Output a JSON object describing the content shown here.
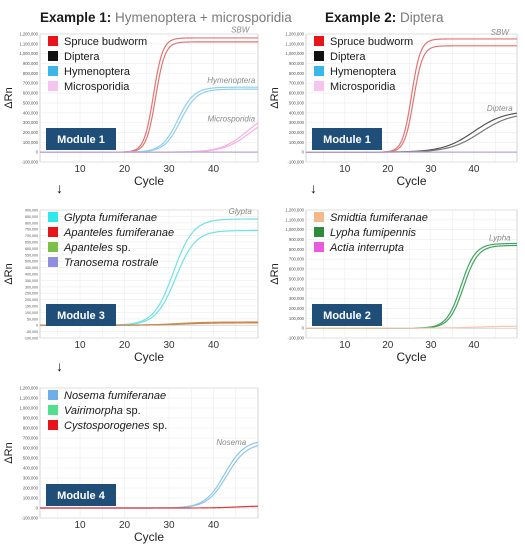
{
  "examples": [
    {
      "bold": "Example 1:",
      "rest": " Hymenoptera + microsporidia"
    },
    {
      "bold": "Example 2:",
      "rest": " Diptera"
    }
  ],
  "arrow_glyph": "↓",
  "chart_data": [
    {
      "id": "p1",
      "type": "line",
      "module_label": "Module 1",
      "xlabel": "Cycle",
      "ylabel": "ΔRn",
      "xlim": [
        1,
        50
      ],
      "ylim": [
        -100000,
        1200000
      ],
      "xticks": [
        10,
        20,
        30,
        40
      ],
      "yticks": [
        -100000,
        0,
        100000,
        200000,
        300000,
        400000,
        500000,
        600000,
        700000,
        800000,
        900000,
        1000000,
        1100000,
        1200000
      ],
      "ytick_labels": [
        "-100,000",
        "0",
        "100,000",
        "200,000",
        "300,000",
        "400,000",
        "500,000",
        "600,000",
        "700,000",
        "800,000",
        "900,000",
        "1,000,000",
        "1,100,000",
        "1,200,000"
      ],
      "legend": [
        {
          "name": "Spruce budworm",
          "color": "#e8141c",
          "italic": false
        },
        {
          "name": "Diptera",
          "color": "#111111",
          "italic": false
        },
        {
          "name": "Hymenoptera",
          "color": "#3bb6e8",
          "italic": false
        },
        {
          "name": "Microsporidia",
          "color": "#f6c4ee",
          "italic": false
        }
      ],
      "annotations": [
        {
          "text": "SBW",
          "x": 46,
          "y": 1215000
        },
        {
          "text": "Hymenoptera",
          "x": 44,
          "y": 700000
        },
        {
          "text": "Microsporidia",
          "x": 44,
          "y": 310000
        }
      ],
      "series": [
        {
          "color": "#e37473",
          "plateau": 1160000,
          "midpoint": 26.5,
          "slope": 0.95
        },
        {
          "color": "#e37473",
          "plateau": 1120000,
          "midpoint": 27.0,
          "slope": 0.95
        },
        {
          "color": "#8fd0ee",
          "plateau": 660000,
          "midpoint": 32.0,
          "slope": 0.55
        },
        {
          "color": "#8fd0ee",
          "plateau": 640000,
          "midpoint": 32.6,
          "slope": 0.55
        },
        {
          "color": "#f5b0e4",
          "plateau": 420000,
          "midpoint": 47.5,
          "slope": 0.35
        },
        {
          "color": "#f5b0e4",
          "plateau": 380000,
          "midpoint": 48.0,
          "slope": 0.35
        },
        {
          "color": "#b9a6d6",
          "plateau": 0,
          "midpoint": 30,
          "slope": 0.5
        }
      ]
    },
    {
      "id": "p2",
      "type": "line",
      "module_label": "Module 1",
      "xlabel": "Cycle",
      "ylabel": "ΔRn",
      "xlim": [
        1,
        50
      ],
      "ylim": [
        -100000,
        1200000
      ],
      "xticks": [
        10,
        20,
        30,
        40
      ],
      "yticks": [
        -100000,
        0,
        100000,
        200000,
        300000,
        400000,
        500000,
        600000,
        700000,
        800000,
        900000,
        1000000,
        1100000,
        1200000
      ],
      "ytick_labels": [
        "-100,000",
        "0",
        "100,000",
        "200,000",
        "300,000",
        "400,000",
        "500,000",
        "600,000",
        "700,000",
        "800,000",
        "900,000",
        "1,000,000",
        "1,100,000",
        "1,200,000"
      ],
      "legend": [
        {
          "name": "Spruce budworm",
          "color": "#e8141c",
          "italic": false
        },
        {
          "name": "Diptera",
          "color": "#111111",
          "italic": false
        },
        {
          "name": "Hymenoptera",
          "color": "#3bb6e8",
          "italic": false
        },
        {
          "name": "Microsporidia",
          "color": "#f6c4ee",
          "italic": false
        }
      ],
      "annotations": [
        {
          "text": "SBW",
          "x": 46,
          "y": 1190000
        },
        {
          "text": "Diptera",
          "x": 46,
          "y": 420000
        }
      ],
      "series": [
        {
          "color": "#e37473",
          "plateau": 1150000,
          "midpoint": 25.5,
          "slope": 0.95
        },
        {
          "color": "#e37473",
          "plateau": 1080000,
          "midpoint": 26.0,
          "slope": 0.95
        },
        {
          "color": "#555555",
          "plateau": 420000,
          "midpoint": 40.0,
          "slope": 0.28
        },
        {
          "color": "#777777",
          "plateau": 400000,
          "midpoint": 41.5,
          "slope": 0.28
        },
        {
          "color": "#b9a6d6",
          "plateau": 0,
          "midpoint": 30,
          "slope": 0.5
        }
      ]
    },
    {
      "id": "p3",
      "type": "line",
      "module_label": "Module 3",
      "xlabel": "Cycle",
      "ylabel": "ΔRn",
      "xlim": [
        1,
        50
      ],
      "ylim": [
        -100000,
        900000
      ],
      "xticks": [
        10,
        20,
        30,
        40
      ],
      "yticks": [
        -100000,
        -50000,
        0,
        50000,
        100000,
        150000,
        200000,
        250000,
        300000,
        350000,
        400000,
        450000,
        500000,
        550000,
        600000,
        650000,
        700000,
        750000,
        800000,
        850000,
        900000
      ],
      "ytick_labels": [
        "-100,000",
        "-50,000",
        "0",
        "50,000",
        "100,000",
        "150,000",
        "200,000",
        "250,000",
        "300,000",
        "350,000",
        "400,000",
        "450,000",
        "500,000",
        "550,000",
        "600,000",
        "650,000",
        "700,000",
        "750,000",
        "800,000",
        "850,000",
        "900,000"
      ],
      "legend": [
        {
          "name": "Glypta fumiferanae",
          "color": "#2ee8ec",
          "italic": true
        },
        {
          "name": "Apanteles fumiferanae",
          "color": "#e8141c",
          "italic": true
        },
        {
          "name": "Apanteles",
          "suffix": " sp.",
          "color": "#7cc04a",
          "italic": true
        },
        {
          "name": "Tranosema rostrale",
          "color": "#8f8fe0",
          "italic": true
        }
      ],
      "annotations": [
        {
          "text": "Glypta",
          "x": 46,
          "y": 870000
        }
      ],
      "series": [
        {
          "color": "#6ee3e6",
          "plateau": 830000,
          "midpoint": 31.0,
          "slope": 0.45
        },
        {
          "color": "#6ee3e6",
          "plateau": 740000,
          "midpoint": 31.5,
          "slope": 0.45
        },
        {
          "color": "#d4894a",
          "plateau": 25000,
          "midpoint": 32.0,
          "slope": 0.3
        },
        {
          "color": "#c6884e",
          "plateau": 18000,
          "midpoint": 33.0,
          "slope": 0.3
        }
      ]
    },
    {
      "id": "p4",
      "type": "line",
      "module_label": "Module 2",
      "xlabel": "Cycle",
      "ylabel": "ΔRn",
      "xlim": [
        1,
        50
      ],
      "ylim": [
        -100000,
        1200000
      ],
      "xticks": [
        10,
        20,
        30,
        40
      ],
      "yticks": [
        -100000,
        0,
        100000,
        200000,
        300000,
        400000,
        500000,
        600000,
        700000,
        800000,
        900000,
        1000000,
        1100000,
        1200000
      ],
      "ytick_labels": [
        "-100,000",
        "0",
        "100,000",
        "200,000",
        "300,000",
        "400,000",
        "500,000",
        "600,000",
        "700,000",
        "800,000",
        "900,000",
        "1,000,000",
        "1,100,000",
        "1,200,000"
      ],
      "legend": [
        {
          "name": "Smidtia fumiferanae",
          "color": "#f4b88a",
          "italic": true
        },
        {
          "name": "Lypha fumipennis",
          "color": "#2e8b3c",
          "italic": true
        },
        {
          "name": "Actia interrupta",
          "color": "#e85ae0",
          "italic": true
        }
      ],
      "annotations": [
        {
          "text": "Lypha",
          "x": 46,
          "y": 890000
        }
      ],
      "series": [
        {
          "color": "#3ea65c",
          "plateau": 860000,
          "midpoint": 37.0,
          "slope": 0.6
        },
        {
          "color": "#3ea65c",
          "plateau": 840000,
          "midpoint": 37.6,
          "slope": 0.6
        },
        {
          "color": "#f6c6ae",
          "plateau": 20000,
          "midpoint": 40.0,
          "slope": 0.3
        }
      ]
    },
    {
      "id": "p5",
      "type": "line",
      "module_label": "Module 4",
      "xlabel": "Cycle",
      "ylabel": "ΔRn",
      "xlim": [
        1,
        50
      ],
      "ylim": [
        -100000,
        1200000
      ],
      "xticks": [
        10,
        20,
        30,
        40
      ],
      "yticks": [
        -100000,
        0,
        100000,
        200000,
        300000,
        400000,
        500000,
        600000,
        700000,
        800000,
        900000,
        1000000,
        1100000,
        1200000
      ],
      "ytick_labels": [
        "-100,000",
        "0",
        "100,000",
        "200,000",
        "300,000",
        "400,000",
        "500,000",
        "600,000",
        "700,000",
        "800,000",
        "900,000",
        "1,000,000",
        "1,100,000",
        "1,200,000"
      ],
      "legend": [
        {
          "name": "Nosema fumiferanae",
          "color": "#6faee8",
          "italic": true
        },
        {
          "name": "Vairimorpha",
          "suffix": " sp.",
          "color": "#4ee08a",
          "italic": true
        },
        {
          "name": "Cystosporogenes",
          "suffix": " sp.",
          "color": "#e8141c",
          "italic": true
        }
      ],
      "annotations": [
        {
          "text": "Nosema",
          "x": 44,
          "y": 630000
        }
      ],
      "series": [
        {
          "color": "#8ec7ec",
          "plateau": 680000,
          "midpoint": 42.5,
          "slope": 0.45
        },
        {
          "color": "#8ec7ec",
          "plateau": 650000,
          "midpoint": 43.0,
          "slope": 0.45
        },
        {
          "color": "#e03a3a",
          "plateau": 20000,
          "midpoint": 45.0,
          "slope": 0.4
        }
      ]
    }
  ]
}
